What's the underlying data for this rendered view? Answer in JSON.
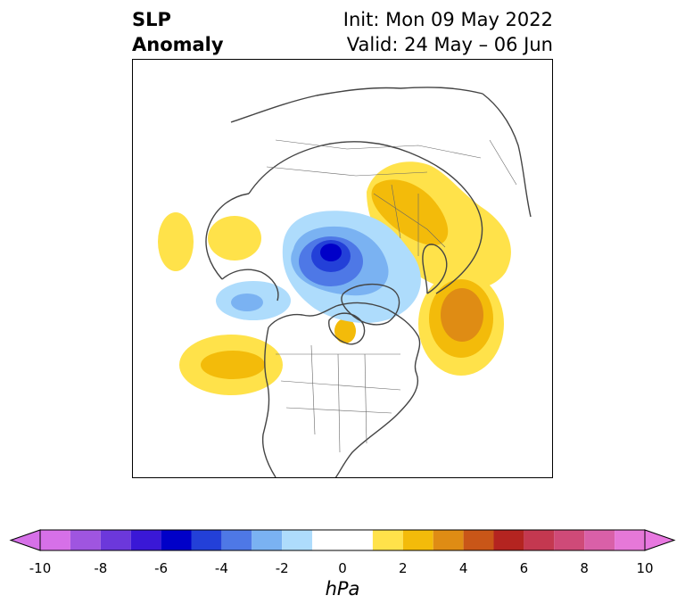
{
  "title": {
    "left_line1": "SLP",
    "left_line2": "Anomaly",
    "right_line1": "Init: Mon 09 May 2022",
    "right_line2": "Valid: 24 May – 06 Jun"
  },
  "colorbar": {
    "unit": "hPa",
    "tick_labels": [
      "-10",
      "-8",
      "-6",
      "-4",
      "-2",
      "0",
      "2",
      "4",
      "6",
      "8",
      "10"
    ],
    "levels": [
      -10,
      -9,
      -8,
      -7,
      -6,
      -5,
      -4,
      -3,
      -2,
      -1,
      1,
      2,
      3,
      4,
      5,
      6,
      7,
      8,
      9,
      10
    ],
    "colors": [
      "#d670e8",
      "#9f55e0",
      "#6c38db",
      "#3a18d6",
      "#0000c8",
      "#2340d8",
      "#4e78e6",
      "#7ab2f2",
      "#aedcfc",
      "#ffffff",
      "#ffe24a",
      "#f3bb0a",
      "#df8c14",
      "#c95618",
      "#b42420",
      "#c43850",
      "#cf4a78",
      "#d960a8",
      "#e678d8"
    ],
    "extend_low_color": "#d670e8",
    "extend_high_color": "#e878e0"
  },
  "map": {
    "anomaly_centers": [
      {
        "name": "arctic-low",
        "value_hpa": -6
      },
      {
        "name": "siberia-high",
        "value_hpa": 2
      },
      {
        "name": "atlantic-high",
        "value_hpa": 4
      },
      {
        "name": "pacific-high",
        "value_hpa": 2
      },
      {
        "name": "alaska-low",
        "value_hpa": -2
      },
      {
        "name": "hudson-high",
        "value_hpa": 2
      },
      {
        "name": "west-pacific-high",
        "value_hpa": 1
      }
    ]
  }
}
